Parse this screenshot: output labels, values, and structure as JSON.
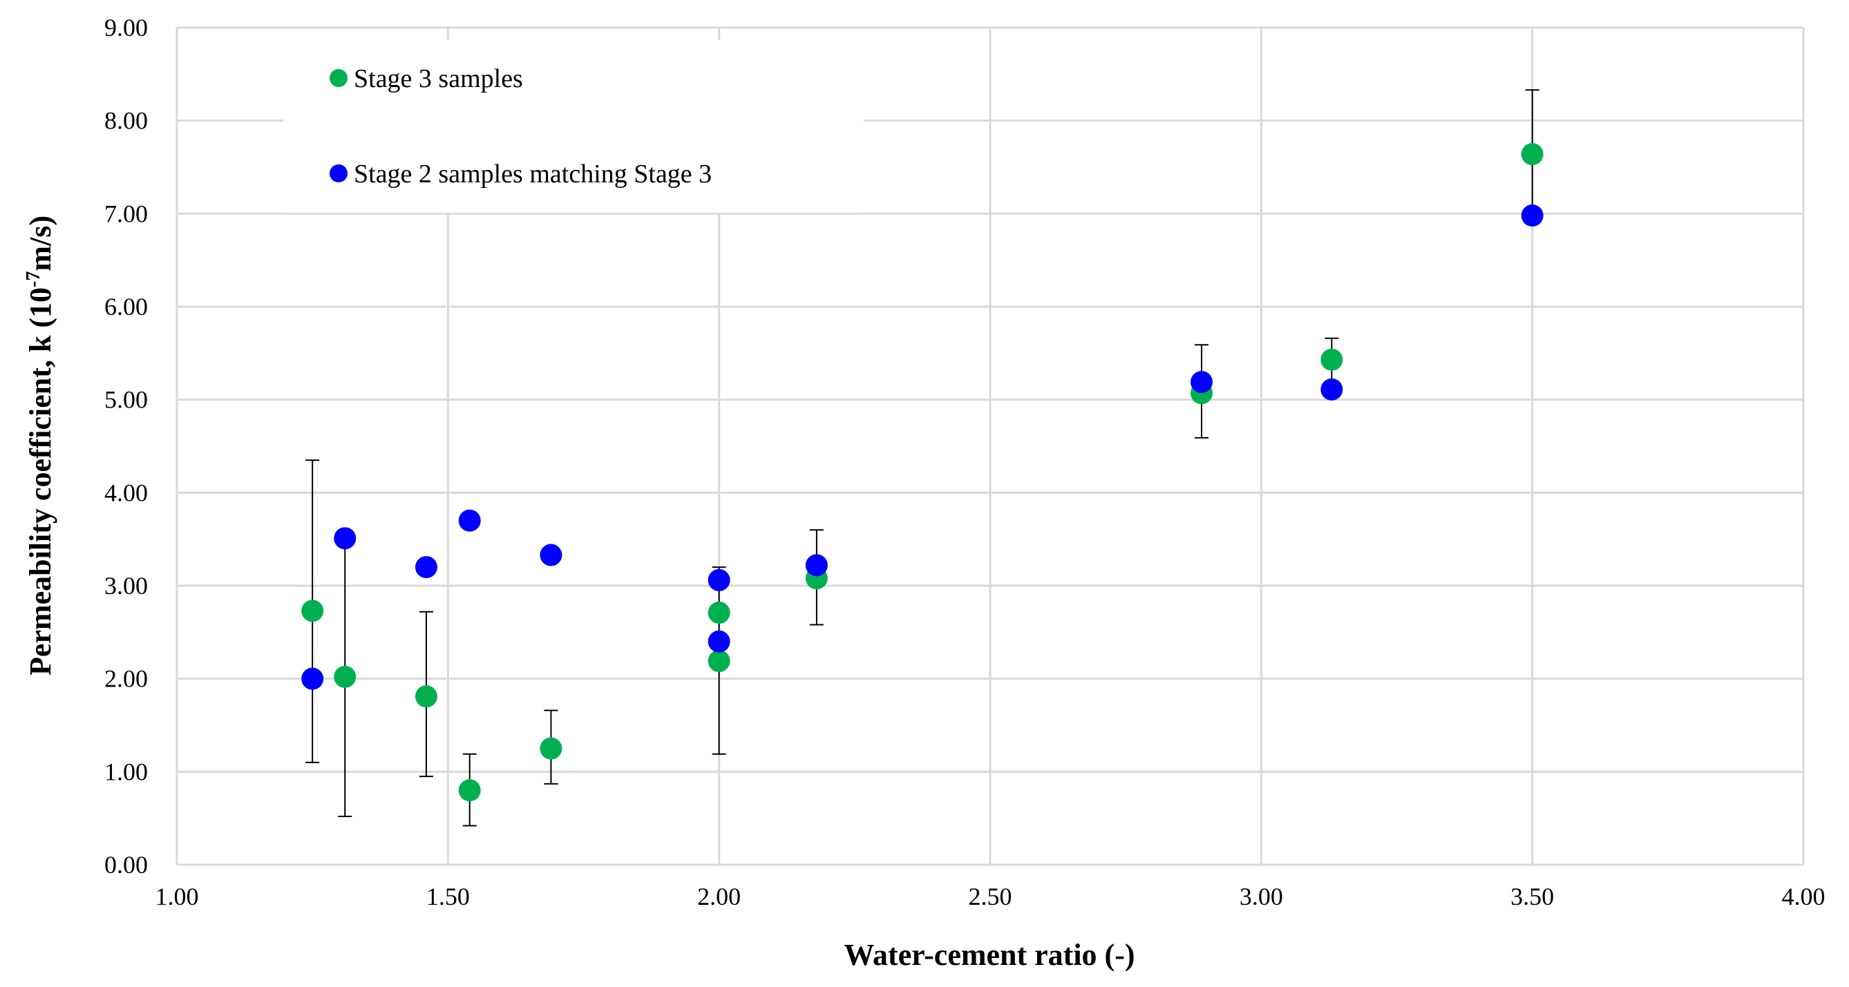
{
  "chart_data": {
    "type": "scatter",
    "xlabel": "Water-cement  ratio (-)",
    "ylabel_parts": [
      "Permeability coefficient, k (10",
      "-7",
      "m/s)"
    ],
    "xlim": [
      1.0,
      4.0
    ],
    "ylim": [
      0.0,
      9.0
    ],
    "x_ticks": [
      1.0,
      1.5,
      2.0,
      2.5,
      3.0,
      3.5,
      4.0
    ],
    "y_ticks": [
      0.0,
      1.0,
      2.0,
      3.0,
      4.0,
      5.0,
      6.0,
      7.0,
      8.0,
      9.0
    ],
    "x_tick_labels": [
      "1.00",
      "1.50",
      "2.00",
      "2.50",
      "3.00",
      "3.50",
      "4.00"
    ],
    "y_tick_labels": [
      "0.00",
      "1.00",
      "2.00",
      "3.00",
      "4.00",
      "5.00",
      "6.00",
      "7.00",
      "8.00",
      "9.00"
    ],
    "grid": true,
    "legend_position": "top-left",
    "series": [
      {
        "name": "Stage 3 samples",
        "color": "#00b050",
        "points": [
          {
            "x": 1.25,
            "y": 2.73,
            "err_low": 1.1,
            "err_high": 4.35
          },
          {
            "x": 1.31,
            "y": 2.02,
            "err_low": 0.52,
            "err_high": 3.5
          },
          {
            "x": 1.46,
            "y": 1.81,
            "err_low": 0.95,
            "err_high": 2.72
          },
          {
            "x": 1.54,
            "y": 0.8,
            "err_low": 0.42,
            "err_high": 1.19
          },
          {
            "x": 1.69,
            "y": 1.25,
            "err_low": 0.87,
            "err_high": 1.66
          },
          {
            "x": 2.0,
            "y": 2.71,
            "err_low": null,
            "err_high": null
          },
          {
            "x": 2.0,
            "y": 2.19,
            "err_low": 1.19,
            "err_high": 3.2
          },
          {
            "x": 2.18,
            "y": 3.08,
            "err_low": 2.58,
            "err_high": 3.6
          },
          {
            "x": 2.89,
            "y": 5.07,
            "err_low": 4.59,
            "err_high": 5.59
          },
          {
            "x": 3.13,
            "y": 5.43,
            "err_low": 5.19,
            "err_high": 5.66
          },
          {
            "x": 3.5,
            "y": 7.64,
            "err_low": 6.97,
            "err_high": 8.33
          }
        ]
      },
      {
        "name": "Stage 2 samples matching Stage 3",
        "color": "#0000ff",
        "points": [
          {
            "x": 1.25,
            "y": 2.0
          },
          {
            "x": 1.31,
            "y": 3.51
          },
          {
            "x": 1.46,
            "y": 3.2
          },
          {
            "x": 1.54,
            "y": 3.7
          },
          {
            "x": 1.69,
            "y": 3.33
          },
          {
            "x": 2.0,
            "y": 3.06
          },
          {
            "x": 2.0,
            "y": 2.4
          },
          {
            "x": 2.18,
            "y": 3.22
          },
          {
            "x": 2.89,
            "y": 5.19
          },
          {
            "x": 3.13,
            "y": 5.11
          },
          {
            "x": 3.5,
            "y": 6.98
          }
        ]
      }
    ]
  }
}
